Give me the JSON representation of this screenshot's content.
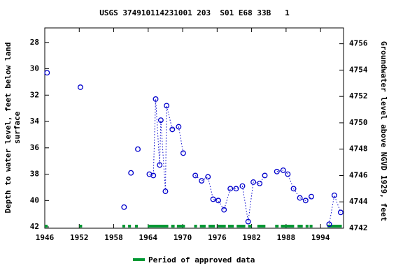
{
  "chart_data": {
    "type": "line",
    "title": "USGS 374910114231001 203  S01 E68 33B   1",
    "ylabel": [
      "Depth to water level, feet below land",
      "surface"
    ],
    "y2label": "Groundwater level above NGVD 1929, feet",
    "xlim": [
      1946,
      1998
    ],
    "xticks": [
      1946,
      1952,
      1958,
      1964,
      1970,
      1976,
      1982,
      1988,
      1994
    ],
    "ylim": [
      42.1,
      26.9
    ],
    "yticks": [
      28,
      30,
      32,
      34,
      36,
      38,
      40,
      42
    ],
    "y2lim": [
      4742.0,
      4757.2
    ],
    "y2ticks": [
      4742,
      4744,
      4746,
      4748,
      4750,
      4752,
      4754,
      4756
    ],
    "series": [
      {
        "color": "#0000cc",
        "x": [
          1946.4,
          null,
          1952.2,
          null,
          1959.8,
          null,
          1961.0,
          null,
          1962.2,
          null,
          1964.2,
          1964.9,
          1965.3,
          1966.0,
          1966.2,
          1967.0,
          1967.2,
          1968.2,
          1969.3,
          1970.1,
          null,
          1972.2,
          1973.3,
          1974.4,
          1975.3,
          1976.2,
          1977.2,
          1978.3,
          1979.3,
          1980.4,
          1981.4,
          1982.3,
          1983.4,
          1984.3,
          null,
          1986.4,
          1987.5,
          1988.3,
          1989.3,
          1990.4,
          1991.4,
          1992.4,
          null,
          1995.5,
          1996.4,
          1997.5
        ],
        "values": [
          30.3,
          null,
          31.4,
          null,
          40.5,
          null,
          37.9,
          null,
          36.1,
          null,
          38.0,
          38.1,
          32.3,
          37.3,
          33.9,
          39.3,
          32.8,
          34.6,
          34.4,
          36.4,
          null,
          38.1,
          38.5,
          38.2,
          39.9,
          40.0,
          40.7,
          39.1,
          39.1,
          38.9,
          41.6,
          38.6,
          38.7,
          38.1,
          null,
          37.8,
          37.7,
          38.0,
          39.1,
          39.8,
          40.0,
          39.7,
          null,
          41.8,
          39.6,
          40.9
        ]
      }
    ],
    "approved_periods": [
      [
        1946.0,
        1946.5
      ],
      [
        1952.0,
        1952.5
      ],
      [
        1959.5,
        1960.0
      ],
      [
        1960.5,
        1961.0
      ],
      [
        1961.7,
        1962.2
      ],
      [
        1963.9,
        1967.5
      ],
      [
        1968.0,
        1968.6
      ],
      [
        1969.0,
        1970.4
      ],
      [
        1972.0,
        1972.5
      ],
      [
        1973.0,
        1974.0
      ],
      [
        1974.5,
        1975.6
      ],
      [
        1976.1,
        1977.5
      ],
      [
        1977.9,
        1978.9
      ],
      [
        1979.4,
        1980.9
      ],
      [
        1981.4,
        1982.0
      ],
      [
        1983.0,
        1984.4
      ],
      [
        1986.1,
        1986.7
      ],
      [
        1987.1,
        1989.4
      ],
      [
        1990.0,
        1990.9
      ],
      [
        1991.4,
        1991.9
      ],
      [
        1992.1,
        1992.6
      ],
      [
        1995.2,
        1997.7
      ]
    ],
    "approved_color": "#009933",
    "legend": "Period of approved data"
  }
}
